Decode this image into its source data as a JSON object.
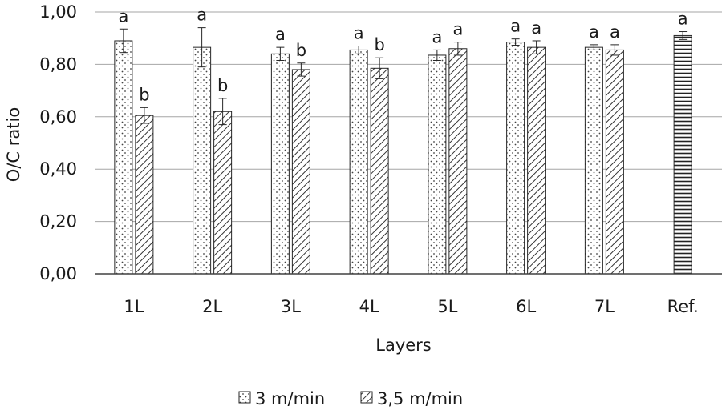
{
  "chart_data": {
    "type": "bar",
    "xlabel": "Layers",
    "ylabel": "O/C ratio",
    "ylim": [
      0,
      1
    ],
    "yticks": [
      "0,00",
      "0,20",
      "0,40",
      "0,60",
      "0,80",
      "1,00"
    ],
    "grid": true,
    "legend_position": "bottom",
    "categories": [
      "1L",
      "2L",
      "3L",
      "4L",
      "5L",
      "6L",
      "7L",
      "Ref."
    ],
    "series": [
      {
        "name": "3 m/min",
        "pattern": "dots",
        "values": [
          0.89,
          0.865,
          0.84,
          0.855,
          0.835,
          0.885,
          0.865,
          null
        ],
        "errors": [
          0.045,
          0.075,
          0.025,
          0.015,
          0.02,
          0.012,
          0.01,
          null
        ],
        "labels": [
          "a",
          "a",
          "a",
          "a",
          "a",
          "a",
          "a",
          null
        ]
      },
      {
        "name": "3,5 m/min",
        "pattern": "diagonal",
        "values": [
          0.605,
          0.62,
          0.78,
          0.785,
          0.86,
          0.865,
          0.855,
          null
        ],
        "errors": [
          0.03,
          0.05,
          0.025,
          0.04,
          0.025,
          0.025,
          0.02,
          null
        ],
        "labels": [
          "b",
          "b",
          "b",
          "b",
          "a",
          "a",
          "a",
          null
        ]
      },
      {
        "name": "Ref.",
        "pattern": "horizontal",
        "values": [
          null,
          null,
          null,
          null,
          null,
          null,
          null,
          0.91
        ],
        "errors": [
          null,
          null,
          null,
          null,
          null,
          null,
          null,
          0.015
        ],
        "labels": [
          null,
          null,
          null,
          null,
          null,
          null,
          null,
          "a"
        ]
      }
    ]
  }
}
